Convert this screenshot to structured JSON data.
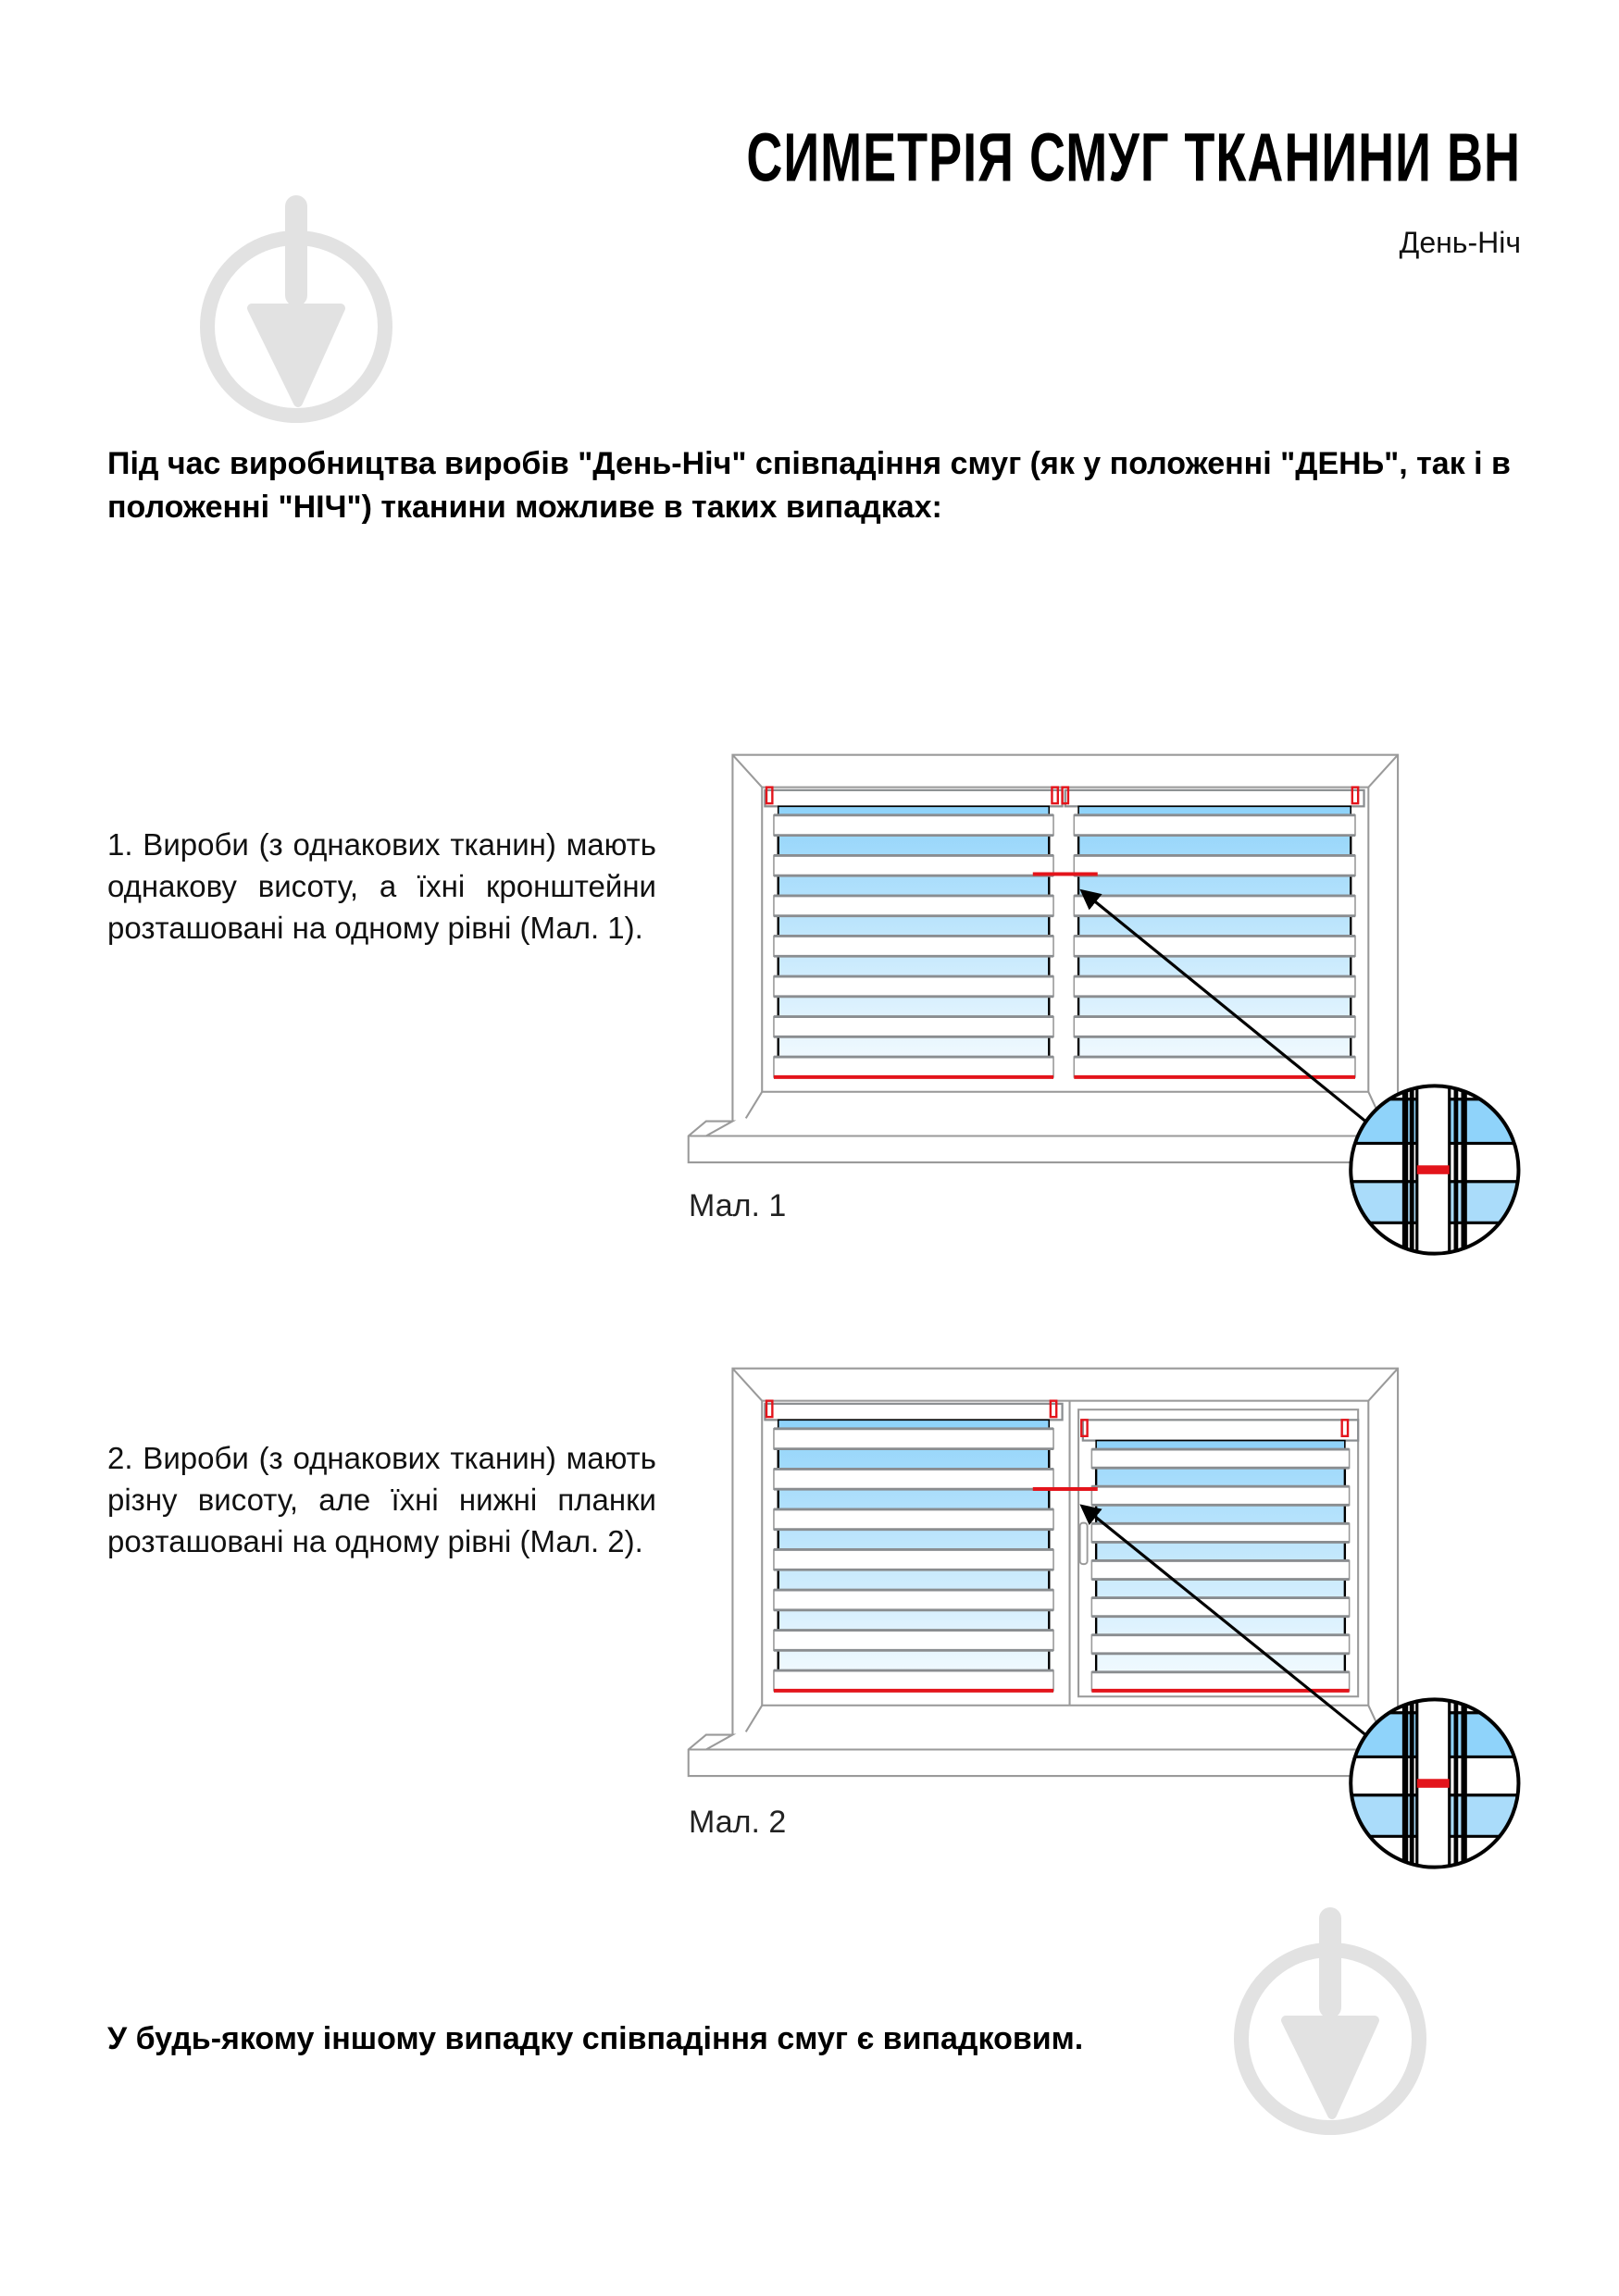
{
  "header": {
    "title": "СИМЕТРІЯ СМУГ ТКАНИНИ ВН",
    "subtitle": "День-Ніч"
  },
  "intro": "Під час виробництва виробів \"День-Ніч\" співпадіння смуг (як у положенні \"ДЕНЬ\", так і в положенні \"НІЧ\") тканини можливе в таких випадках:",
  "cases": [
    {
      "text": "1. Вироби (з однакових тканин) мають однакову висоту, а їхні кронштейни розташовані на одному рівні (Мал. 1).",
      "caption": "Мал. 1"
    },
    {
      "text": "2. Вироби (з однакових тканин) мають різну висоту, але їхні нижні планки розташовані на одному рівні (Мал. 2).",
      "caption": "Мал. 2"
    }
  ],
  "outro": "У будь-якому іншому випадку співпадіння смуг є випадковим.",
  "colors": {
    "frame": "#9a9a9a",
    "slat": "#8a8d90",
    "fabric_blue": "#8fd3fa",
    "marker_red": "#e3141b",
    "watermark": "#e2e2e2"
  },
  "icons": {
    "watermark": "trowel-in-circle-logo",
    "arrow": "arrow-pointer",
    "magnifier": "zoom-detail-circle"
  }
}
